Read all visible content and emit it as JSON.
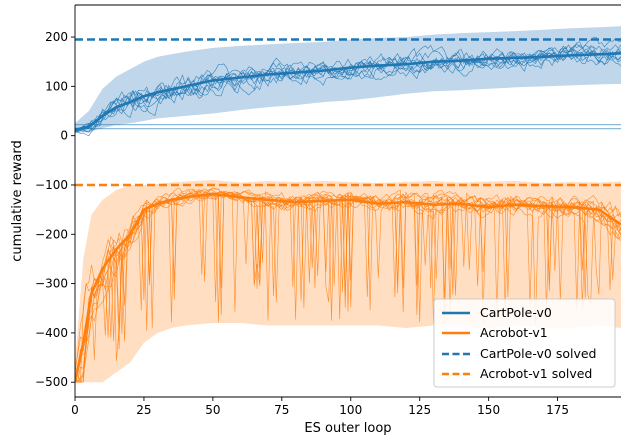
{
  "chart_data": {
    "type": "line",
    "title": "",
    "xlabel": "ES outer loop",
    "ylabel": "cumulative reward",
    "xlim": [
      0,
      198
    ],
    "ylim": [
      -530,
      265
    ],
    "xticks": [
      0,
      25,
      50,
      75,
      100,
      125,
      150,
      175
    ],
    "yticks": [
      200,
      100,
      0,
      -100,
      -200,
      -300,
      -400,
      -500
    ],
    "grid": false,
    "legend_position": "lower-right",
    "colors": {
      "cartpole": "#1f77b4",
      "cartpole_band": "#a9c8e4",
      "acrobot": "#ff7f0e",
      "acrobot_band": "#ffd3ad"
    },
    "series": [
      {
        "name": "CartPole-v0",
        "kind": "mean",
        "x": [
          0,
          5,
          10,
          15,
          20,
          25,
          30,
          40,
          50,
          60,
          70,
          80,
          90,
          100,
          110,
          120,
          130,
          140,
          150,
          160,
          170,
          180,
          190,
          198
        ],
        "values": [
          12,
          18,
          40,
          58,
          68,
          80,
          88,
          100,
          112,
          118,
          124,
          128,
          132,
          138,
          142,
          145,
          150,
          152,
          156,
          158,
          160,
          163,
          165,
          167
        ],
        "band_upper": [
          25,
          50,
          95,
          120,
          135,
          150,
          160,
          170,
          178,
          182,
          185,
          188,
          190,
          195,
          198,
          200,
          205,
          208,
          210,
          212,
          215,
          218,
          220,
          222
        ],
        "band_lower": [
          5,
          8,
          15,
          22,
          25,
          30,
          35,
          40,
          45,
          52,
          58,
          62,
          68,
          72,
          78,
          85,
          90,
          92,
          95,
          98,
          100,
          102,
          104,
          105
        ]
      },
      {
        "name": "Acrobot-v1",
        "kind": "mean",
        "x": [
          0,
          3,
          6,
          10,
          15,
          20,
          25,
          30,
          35,
          40,
          50,
          60,
          70,
          80,
          90,
          100,
          110,
          120,
          130,
          140,
          150,
          160,
          170,
          180,
          190,
          198
        ],
        "values": [
          -500,
          -420,
          -320,
          -270,
          -230,
          -200,
          -150,
          -138,
          -130,
          -125,
          -118,
          -125,
          -130,
          -135,
          -132,
          -130,
          -138,
          -135,
          -140,
          -138,
          -145,
          -140,
          -143,
          -145,
          -150,
          -180
        ],
        "band_upper": [
          -460,
          -250,
          -160,
          -130,
          -110,
          -100,
          -100,
          -98,
          -95,
          -93,
          -90,
          -95,
          -92,
          -94,
          -92,
          -94,
          -96,
          -94,
          -92,
          -95,
          -93,
          -92,
          -96,
          -94,
          -95,
          -93
        ],
        "band_lower": [
          -500,
          -500,
          -500,
          -500,
          -480,
          -460,
          -420,
          -400,
          -390,
          -385,
          -380,
          -380,
          -385,
          -385,
          -385,
          -385,
          -385,
          -390,
          -385,
          -385,
          -390,
          -385,
          -390,
          -390,
          -385,
          -390
        ]
      },
      {
        "name": "CartPole-v0 solved",
        "kind": "threshold",
        "y": 195
      },
      {
        "name": "Acrobot-v1 solved",
        "kind": "threshold",
        "y": -100
      }
    ],
    "legend": [
      "CartPole-v0",
      "Acrobot-v1",
      "CartPole-v0 solved",
      "Acrobot-v1 solved"
    ]
  }
}
